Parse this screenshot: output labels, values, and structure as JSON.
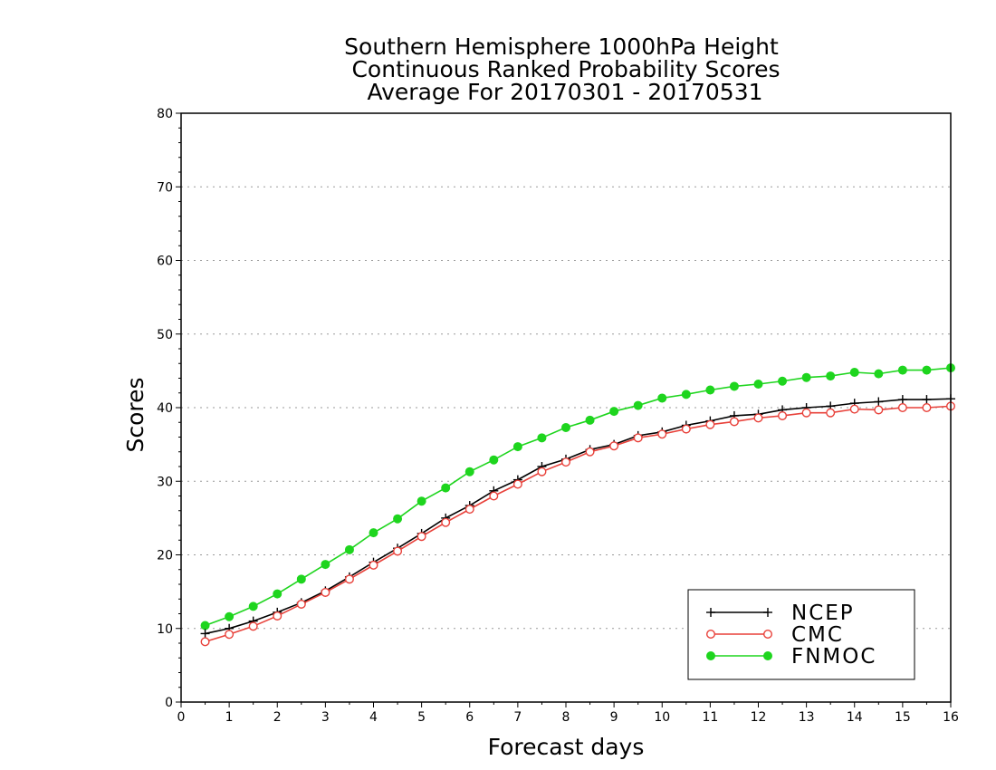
{
  "chart_data": {
    "type": "line",
    "title": [
      "Southern Hemisphere 1000hPa Height",
      "Continuous Ranked Probability Scores",
      "Average For 20170301 - 20170531"
    ],
    "xlabel": "Forecast days",
    "ylabel": "Scores",
    "xlim": [
      0,
      16
    ],
    "ylim": [
      0,
      80
    ],
    "xticks": [
      0,
      1,
      2,
      3,
      4,
      5,
      6,
      7,
      8,
      9,
      10,
      11,
      12,
      13,
      14,
      15,
      16
    ],
    "yticks": [
      0,
      10,
      20,
      30,
      40,
      50,
      60,
      70,
      80
    ],
    "grid": "horizontal dotted",
    "legend_position": "bottom-right",
    "x": [
      0.5,
      1,
      1.5,
      2,
      2.5,
      3,
      3.5,
      4,
      4.5,
      5,
      5.5,
      6,
      6.5,
      7,
      7.5,
      8,
      8.5,
      9,
      9.5,
      10,
      10.5,
      11,
      11.5,
      12,
      12.5,
      13,
      13.5,
      14,
      14.5,
      15,
      15.5,
      16
    ],
    "series": [
      {
        "name": "NCEP",
        "color": "#000000",
        "marker": "plus",
        "values": [
          9.3,
          10.0,
          11.0,
          12.2,
          13.5,
          15.1,
          17.0,
          19.0,
          20.9,
          22.9,
          25.0,
          26.7,
          28.7,
          30.2,
          32.0,
          33.0,
          34.3,
          35.0,
          36.2,
          36.7,
          37.6,
          38.2,
          38.9,
          39.1,
          39.7,
          40.0,
          40.2,
          40.6,
          40.8,
          41.1,
          41.1,
          41.2
        ]
      },
      {
        "name": "CMC",
        "color": "#e8413a",
        "marker": "open-circle",
        "values": [
          8.2,
          9.2,
          10.3,
          11.7,
          13.3,
          14.9,
          16.7,
          18.6,
          20.5,
          22.5,
          24.4,
          26.2,
          28.0,
          29.6,
          31.3,
          32.6,
          34.0,
          34.8,
          35.9,
          36.4,
          37.1,
          37.7,
          38.1,
          38.6,
          38.9,
          39.3,
          39.3,
          39.8,
          39.7,
          40.0,
          40.0,
          40.2
        ]
      },
      {
        "name": "FNMOC",
        "color": "#1ed51e",
        "marker": "filled-circle",
        "values": [
          10.4,
          11.6,
          13.0,
          14.7,
          16.7,
          18.7,
          20.7,
          23.0,
          24.9,
          27.3,
          29.1,
          31.3,
          32.9,
          34.7,
          35.9,
          37.3,
          38.3,
          39.5,
          40.3,
          41.3,
          41.8,
          42.4,
          42.9,
          43.2,
          43.6,
          44.1,
          44.3,
          44.8,
          44.6,
          45.1,
          45.1,
          45.4
        ]
      }
    ]
  }
}
